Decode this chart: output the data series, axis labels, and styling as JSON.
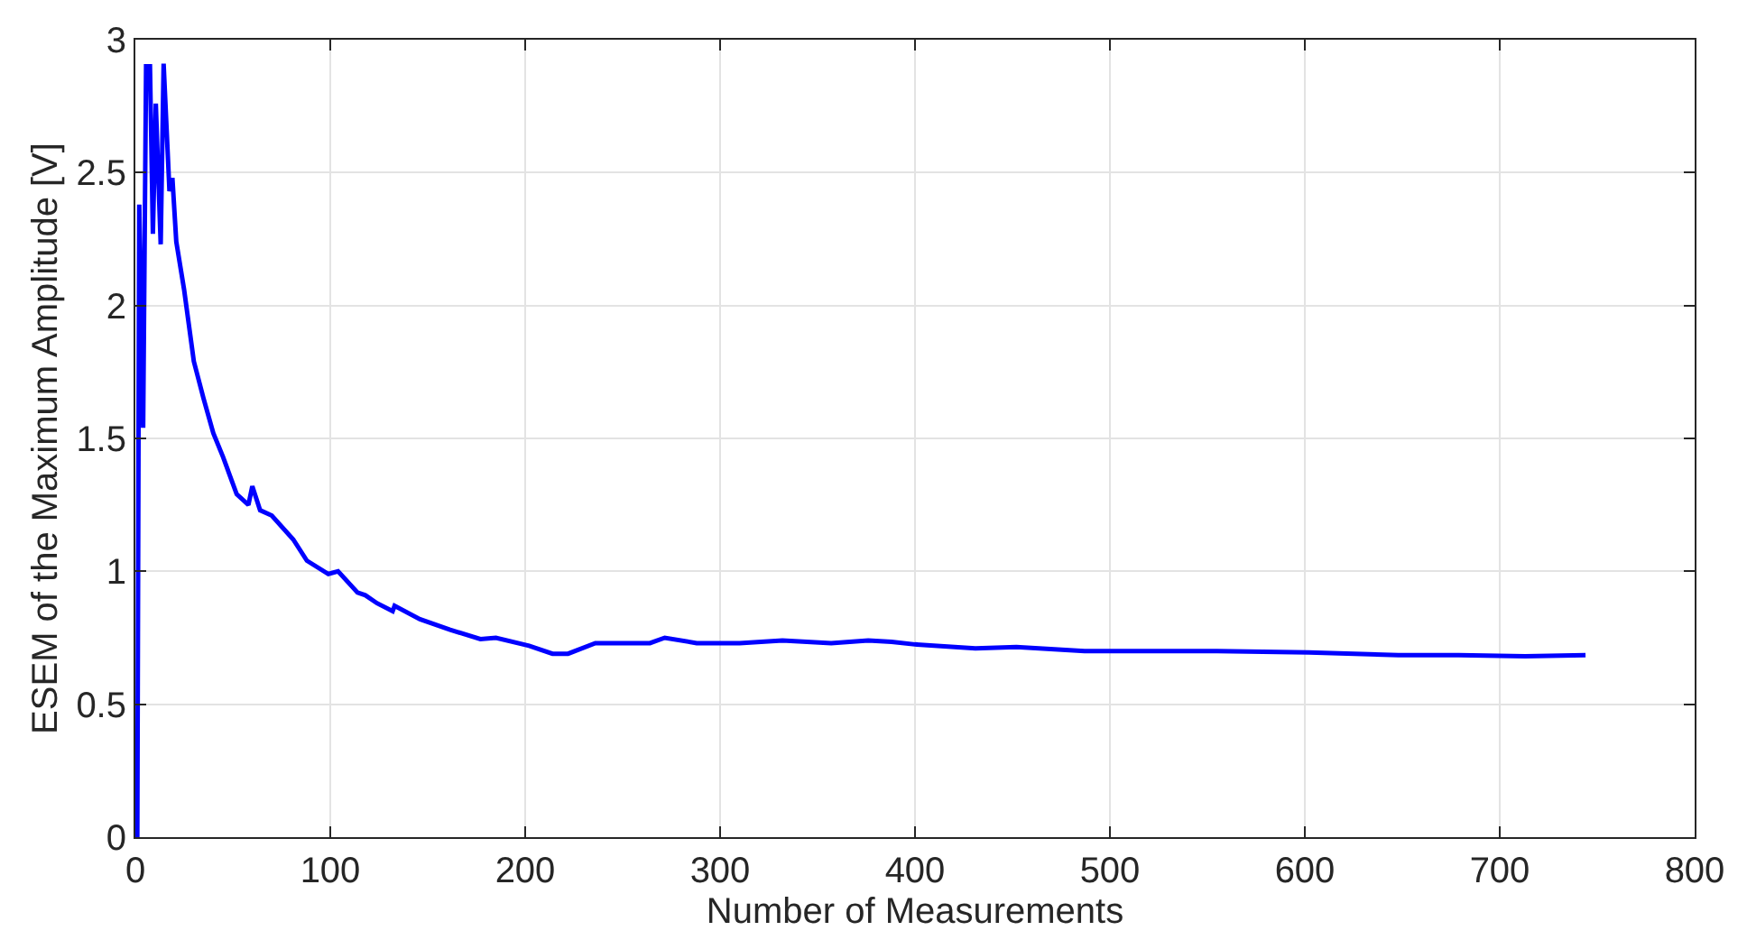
{
  "chart_data": {
    "type": "line",
    "xlabel": "Number of Measurements",
    "ylabel": "ESEM of the Maximum Amplitude [V]",
    "xlim": [
      0,
      800
    ],
    "ylim": [
      0,
      3
    ],
    "xticks": [
      0,
      100,
      200,
      300,
      400,
      500,
      600,
      700,
      800
    ],
    "yticks": [
      0,
      0.5,
      1,
      1.5,
      2,
      2.5,
      3
    ],
    "grid": true,
    "series": [
      {
        "color": "#0000ff",
        "x": [
          1,
          2,
          4,
          5.5,
          7.5,
          9,
          10.5,
          13,
          14.5,
          17.5,
          19,
          21,
          25,
          30,
          35,
          40,
          45,
          52,
          58,
          60,
          64,
          70,
          81,
          88,
          99,
          104,
          114,
          118,
          124,
          132,
          133,
          146,
          161.5,
          177,
          185,
          202,
          214,
          222,
          236,
          264,
          271.6,
          288,
          310,
          332,
          357,
          376,
          388,
          400,
          431,
          452,
          487,
          524,
          555,
          602,
          648,
          679,
          713,
          744
        ],
        "values": [
          0,
          2.38,
          1.54,
          2.9,
          2.9,
          2.27,
          2.76,
          2.23,
          2.91,
          2.43,
          2.48,
          2.24,
          2.06,
          1.79,
          1.65,
          1.52,
          1.43,
          1.29,
          1.25,
          1.32,
          1.23,
          1.21,
          1.12,
          1.04,
          0.99,
          1.0,
          0.92,
          0.91,
          0.88,
          0.85,
          0.87,
          0.82,
          0.78,
          0.745,
          0.75,
          0.72,
          0.69,
          0.69,
          0.73,
          0.73,
          0.75,
          0.73,
          0.73,
          0.74,
          0.73,
          0.74,
          0.735,
          0.725,
          0.71,
          0.715,
          0.7,
          0.7,
          0.7,
          0.695,
          0.685,
          0.685,
          0.68,
          0.685
        ]
      }
    ]
  }
}
